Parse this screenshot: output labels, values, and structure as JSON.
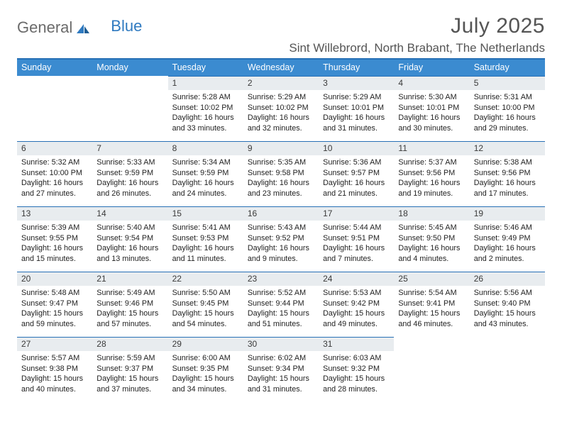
{
  "brand": {
    "part1": "General",
    "part2": "Blue"
  },
  "title": "July 2025",
  "location": "Sint Willebrord, North Brabant, The Netherlands",
  "colors": {
    "header_bg": "#3b8bd0",
    "rule": "#2770b5",
    "daynum_bg": "#e8ecef",
    "logo_gray": "#6b6b6b",
    "logo_blue": "#2f7ac0"
  },
  "weekdays": [
    "Sunday",
    "Monday",
    "Tuesday",
    "Wednesday",
    "Thursday",
    "Friday",
    "Saturday"
  ],
  "grid": [
    [
      null,
      null,
      {
        "n": "1",
        "sr": "Sunrise: 5:28 AM",
        "ss": "Sunset: 10:02 PM",
        "dl": "Daylight: 16 hours and 33 minutes."
      },
      {
        "n": "2",
        "sr": "Sunrise: 5:29 AM",
        "ss": "Sunset: 10:02 PM",
        "dl": "Daylight: 16 hours and 32 minutes."
      },
      {
        "n": "3",
        "sr": "Sunrise: 5:29 AM",
        "ss": "Sunset: 10:01 PM",
        "dl": "Daylight: 16 hours and 31 minutes."
      },
      {
        "n": "4",
        "sr": "Sunrise: 5:30 AM",
        "ss": "Sunset: 10:01 PM",
        "dl": "Daylight: 16 hours and 30 minutes."
      },
      {
        "n": "5",
        "sr": "Sunrise: 5:31 AM",
        "ss": "Sunset: 10:00 PM",
        "dl": "Daylight: 16 hours and 29 minutes."
      }
    ],
    [
      {
        "n": "6",
        "sr": "Sunrise: 5:32 AM",
        "ss": "Sunset: 10:00 PM",
        "dl": "Daylight: 16 hours and 27 minutes."
      },
      {
        "n": "7",
        "sr": "Sunrise: 5:33 AM",
        "ss": "Sunset: 9:59 PM",
        "dl": "Daylight: 16 hours and 26 minutes."
      },
      {
        "n": "8",
        "sr": "Sunrise: 5:34 AM",
        "ss": "Sunset: 9:59 PM",
        "dl": "Daylight: 16 hours and 24 minutes."
      },
      {
        "n": "9",
        "sr": "Sunrise: 5:35 AM",
        "ss": "Sunset: 9:58 PM",
        "dl": "Daylight: 16 hours and 23 minutes."
      },
      {
        "n": "10",
        "sr": "Sunrise: 5:36 AM",
        "ss": "Sunset: 9:57 PM",
        "dl": "Daylight: 16 hours and 21 minutes."
      },
      {
        "n": "11",
        "sr": "Sunrise: 5:37 AM",
        "ss": "Sunset: 9:56 PM",
        "dl": "Daylight: 16 hours and 19 minutes."
      },
      {
        "n": "12",
        "sr": "Sunrise: 5:38 AM",
        "ss": "Sunset: 9:56 PM",
        "dl": "Daylight: 16 hours and 17 minutes."
      }
    ],
    [
      {
        "n": "13",
        "sr": "Sunrise: 5:39 AM",
        "ss": "Sunset: 9:55 PM",
        "dl": "Daylight: 16 hours and 15 minutes."
      },
      {
        "n": "14",
        "sr": "Sunrise: 5:40 AM",
        "ss": "Sunset: 9:54 PM",
        "dl": "Daylight: 16 hours and 13 minutes."
      },
      {
        "n": "15",
        "sr": "Sunrise: 5:41 AM",
        "ss": "Sunset: 9:53 PM",
        "dl": "Daylight: 16 hours and 11 minutes."
      },
      {
        "n": "16",
        "sr": "Sunrise: 5:43 AM",
        "ss": "Sunset: 9:52 PM",
        "dl": "Daylight: 16 hours and 9 minutes."
      },
      {
        "n": "17",
        "sr": "Sunrise: 5:44 AM",
        "ss": "Sunset: 9:51 PM",
        "dl": "Daylight: 16 hours and 7 minutes."
      },
      {
        "n": "18",
        "sr": "Sunrise: 5:45 AM",
        "ss": "Sunset: 9:50 PM",
        "dl": "Daylight: 16 hours and 4 minutes."
      },
      {
        "n": "19",
        "sr": "Sunrise: 5:46 AM",
        "ss": "Sunset: 9:49 PM",
        "dl": "Daylight: 16 hours and 2 minutes."
      }
    ],
    [
      {
        "n": "20",
        "sr": "Sunrise: 5:48 AM",
        "ss": "Sunset: 9:47 PM",
        "dl": "Daylight: 15 hours and 59 minutes."
      },
      {
        "n": "21",
        "sr": "Sunrise: 5:49 AM",
        "ss": "Sunset: 9:46 PM",
        "dl": "Daylight: 15 hours and 57 minutes."
      },
      {
        "n": "22",
        "sr": "Sunrise: 5:50 AM",
        "ss": "Sunset: 9:45 PM",
        "dl": "Daylight: 15 hours and 54 minutes."
      },
      {
        "n": "23",
        "sr": "Sunrise: 5:52 AM",
        "ss": "Sunset: 9:44 PM",
        "dl": "Daylight: 15 hours and 51 minutes."
      },
      {
        "n": "24",
        "sr": "Sunrise: 5:53 AM",
        "ss": "Sunset: 9:42 PM",
        "dl": "Daylight: 15 hours and 49 minutes."
      },
      {
        "n": "25",
        "sr": "Sunrise: 5:54 AM",
        "ss": "Sunset: 9:41 PM",
        "dl": "Daylight: 15 hours and 46 minutes."
      },
      {
        "n": "26",
        "sr": "Sunrise: 5:56 AM",
        "ss": "Sunset: 9:40 PM",
        "dl": "Daylight: 15 hours and 43 minutes."
      }
    ],
    [
      {
        "n": "27",
        "sr": "Sunrise: 5:57 AM",
        "ss": "Sunset: 9:38 PM",
        "dl": "Daylight: 15 hours and 40 minutes."
      },
      {
        "n": "28",
        "sr": "Sunrise: 5:59 AM",
        "ss": "Sunset: 9:37 PM",
        "dl": "Daylight: 15 hours and 37 minutes."
      },
      {
        "n": "29",
        "sr": "Sunrise: 6:00 AM",
        "ss": "Sunset: 9:35 PM",
        "dl": "Daylight: 15 hours and 34 minutes."
      },
      {
        "n": "30",
        "sr": "Sunrise: 6:02 AM",
        "ss": "Sunset: 9:34 PM",
        "dl": "Daylight: 15 hours and 31 minutes."
      },
      {
        "n": "31",
        "sr": "Sunrise: 6:03 AM",
        "ss": "Sunset: 9:32 PM",
        "dl": "Daylight: 15 hours and 28 minutes."
      },
      null,
      null
    ]
  ]
}
